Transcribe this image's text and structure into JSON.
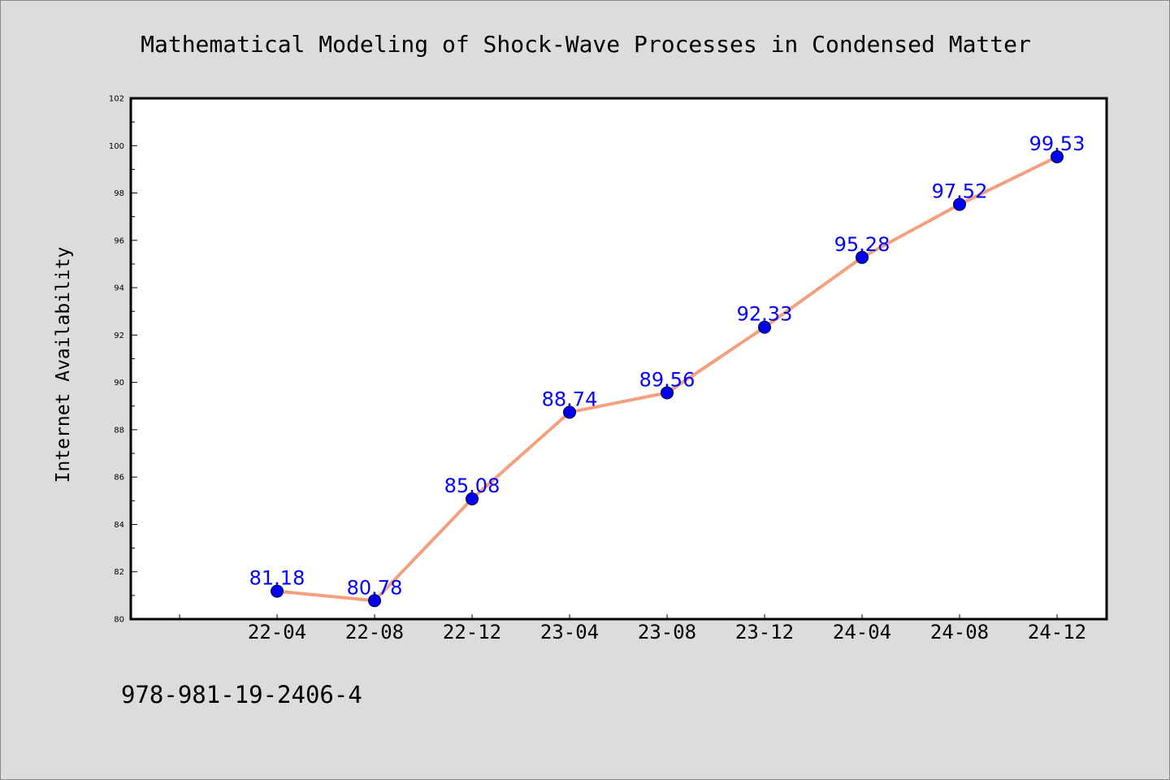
{
  "chart_data": {
    "type": "line",
    "title": "Mathematical Modeling of Shock-Wave Processes in Condensed Matter",
    "xlabel": "",
    "ylabel": "Internet Availability",
    "categories": [
      "22-04",
      "22-08",
      "22-12",
      "23-04",
      "23-08",
      "23-12",
      "24-04",
      "24-08",
      "24-12"
    ],
    "series": [
      {
        "values": [
          81.18,
          80.78,
          85.08,
          88.74,
          89.56,
          92.33,
          95.28,
          97.52,
          99.53
        ],
        "data_labels": [
          "81.18",
          "80.78",
          "85.08",
          "88.74",
          "89.56",
          "92.33",
          "95.28",
          "97.52",
          "99.53"
        ],
        "line_color": "#f4a07e",
        "marker_color": "#0000ee"
      }
    ],
    "ylim": [
      80,
      102
    ],
    "yticks": [
      80,
      82,
      84,
      86,
      88,
      90,
      92,
      94,
      96,
      98,
      100,
      102
    ],
    "ytick_labels": [
      "80",
      "82",
      "84",
      "86",
      "88",
      "90",
      "92",
      "94",
      "96",
      "98",
      "100",
      "102"
    ],
    "grid": false,
    "legend": "none",
    "label_color": "#0000ff"
  },
  "footer": {
    "text": "978-981-19-2406-4"
  },
  "colors": {
    "background": "#dcdcdc",
    "plot_area": "#ffffff",
    "axis": "#000000"
  }
}
